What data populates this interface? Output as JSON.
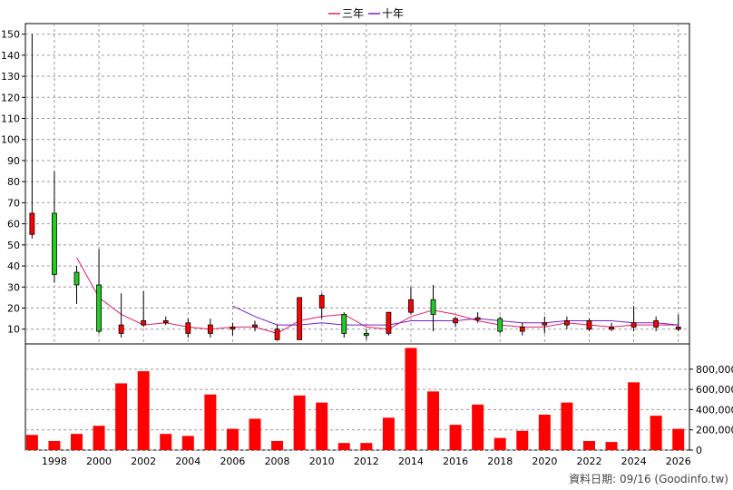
{
  "legend": [
    {
      "label": "三年",
      "color": "#e0206a"
    },
    {
      "label": "十年",
      "color": "#7a1fc0"
    }
  ],
  "footer": "資料日期: 09/16 (Goodinfo.tw)",
  "colors": {
    "up": "#ff0000",
    "down": "#22cc22",
    "volume": "#ff0000",
    "grid": "#999999"
  },
  "chart_data": [
    {
      "type": "candlestick",
      "x": [
        1997,
        1998,
        1999,
        2000,
        2001,
        2002,
        2003,
        2004,
        2005,
        2006,
        2007,
        2008,
        2009,
        2010,
        2011,
        2012,
        2013,
        2014,
        2015,
        2016,
        2017,
        2018,
        2019,
        2020,
        2021,
        2022,
        2023,
        2024,
        2025,
        2026
      ],
      "open": [
        55,
        65,
        37,
        31,
        8,
        12,
        13,
        8,
        8,
        10,
        11,
        5,
        5,
        20,
        17,
        8,
        8,
        18,
        24,
        13,
        15,
        15,
        9,
        12,
        12,
        10,
        10,
        11,
        11,
        10
      ],
      "high": [
        150,
        85,
        40,
        48,
        27,
        28,
        16,
        15,
        15,
        13,
        14,
        12,
        25,
        27,
        18,
        10,
        18,
        30,
        31,
        16,
        18,
        16,
        13,
        16,
        16,
        15,
        13,
        21,
        16,
        17
      ],
      "low": [
        53,
        32,
        22,
        8,
        6,
        11,
        12,
        6,
        6,
        7,
        9,
        5,
        5,
        15,
        6,
        5,
        7,
        17,
        9,
        11,
        13,
        8,
        7,
        8,
        10,
        9,
        9,
        9,
        9,
        9
      ],
      "close": [
        65,
        36,
        31,
        9,
        12,
        14,
        14,
        13,
        12,
        11,
        12,
        10,
        25,
        26,
        8,
        7,
        18,
        24,
        17,
        15,
        15,
        9,
        11,
        13,
        14,
        14,
        11,
        13,
        14,
        11
      ],
      "ylim": [
        3,
        155
      ],
      "yticks": [
        10,
        20,
        30,
        40,
        50,
        60,
        70,
        80,
        90,
        100,
        110,
        120,
        130,
        140,
        150
      ],
      "series": [
        {
          "name": "三年",
          "x": [
            1999,
            2000,
            2001,
            2002,
            2003,
            2004,
            2005,
            2006,
            2007,
            2008,
            2009,
            2010,
            2011,
            2012,
            2013,
            2014,
            2015,
            2016,
            2017,
            2018,
            2019,
            2020,
            2021,
            2022,
            2023,
            2024,
            2025,
            2026
          ],
          "values": [
            44,
            25,
            17,
            12,
            13,
            11,
            10,
            11,
            11,
            8,
            14,
            16,
            17,
            11,
            10,
            16,
            19,
            17,
            14,
            12,
            11,
            11,
            13,
            12,
            11,
            12,
            12,
            12
          ]
        },
        {
          "name": "十年",
          "x": [
            2006,
            2007,
            2008,
            2009,
            2010,
            2011,
            2012,
            2013,
            2014,
            2015,
            2016,
            2017,
            2018,
            2019,
            2020,
            2021,
            2022,
            2023,
            2024,
            2025,
            2026
          ],
          "values": [
            21,
            16,
            12,
            12,
            13,
            12,
            12,
            12,
            14,
            14,
            14,
            15,
            14,
            13,
            13,
            14,
            14,
            14,
            13,
            13,
            12
          ]
        }
      ]
    },
    {
      "type": "bar",
      "x": [
        1997,
        1998,
        1999,
        2000,
        2001,
        2002,
        2003,
        2004,
        2005,
        2006,
        2007,
        2008,
        2009,
        2010,
        2011,
        2012,
        2013,
        2014,
        2015,
        2016,
        2017,
        2018,
        2019,
        2020,
        2021,
        2022,
        2023,
        2024,
        2025,
        2026
      ],
      "values": [
        150000,
        90000,
        160000,
        240000,
        660000,
        780000,
        160000,
        140000,
        550000,
        210000,
        310000,
        90000,
        540000,
        470000,
        70000,
        70000,
        320000,
        1010000,
        580000,
        250000,
        450000,
        120000,
        190000,
        350000,
        470000,
        90000,
        80000,
        670000,
        340000,
        210000
      ],
      "ylim": [
        0,
        1050000
      ],
      "yticks": [
        0,
        200000,
        400000,
        600000,
        800000
      ],
      "ytick_labels": [
        "0",
        "200,000",
        "400,000",
        "600,000",
        "800,000"
      ],
      "xticks": [
        1998,
        2000,
        2002,
        2004,
        2006,
        2008,
        2010,
        2012,
        2014,
        2016,
        2018,
        2020,
        2022,
        2024,
        2026
      ],
      "xlim": [
        1996.7,
        2026.5
      ]
    }
  ]
}
